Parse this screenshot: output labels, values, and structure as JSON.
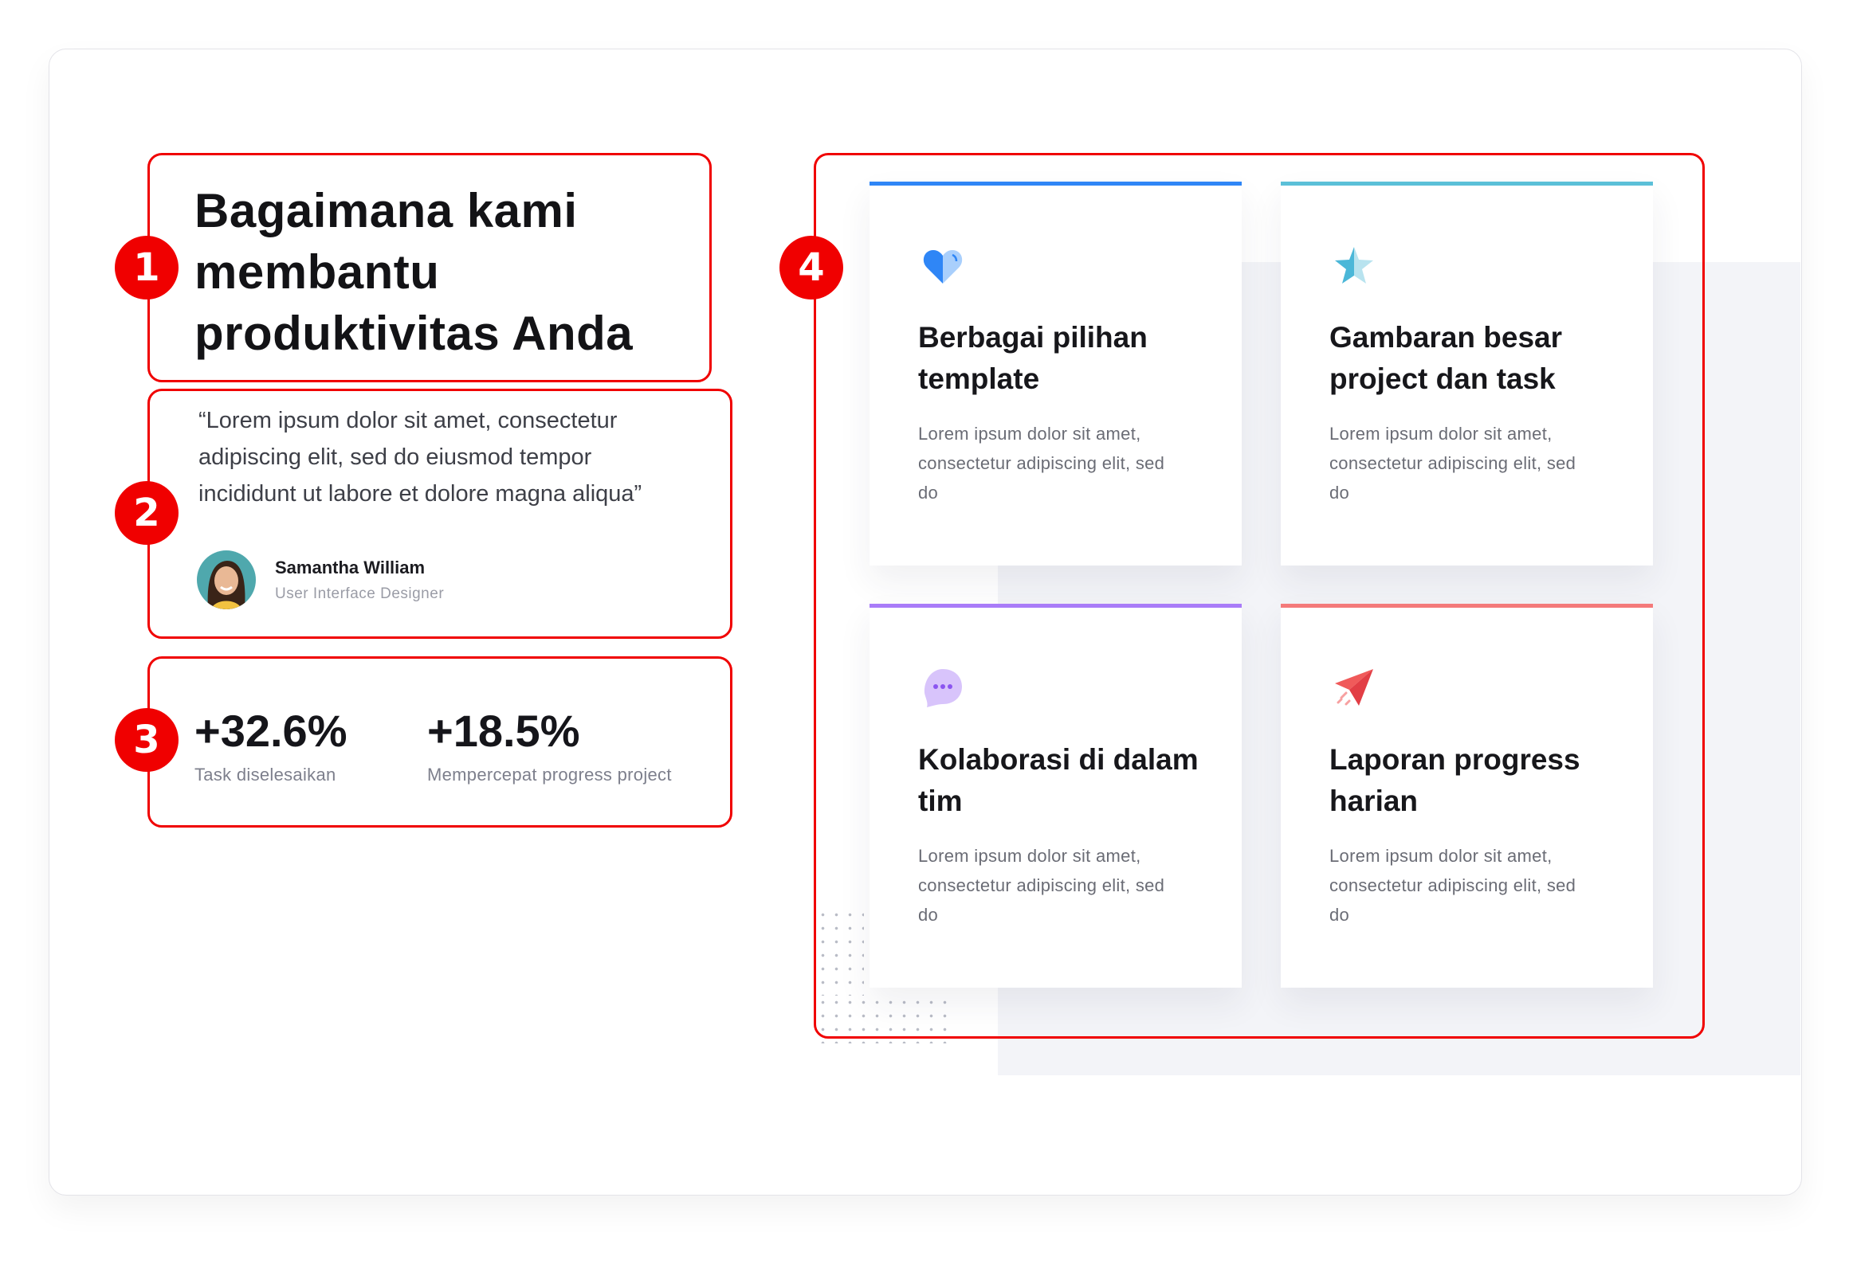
{
  "heading": {
    "title_lines": [
      "Bagaimana kami",
      "membantu",
      "produktivitas Anda"
    ]
  },
  "testimonial": {
    "quote_lines": [
      "“Lorem ipsum dolor sit amet, consectetur",
      "adipiscing elit, sed do eiusmod tempor",
      "incididunt ut labore et dolore magna aliqua”"
    ],
    "name": "Samantha William",
    "role": "User Interface Designer"
  },
  "stats": [
    {
      "value": "+32.6%",
      "label": "Task diselesaikan"
    },
    {
      "value": "+18.5%",
      "label": "Mempercepat progress project"
    }
  ],
  "badges": [
    "1",
    "2",
    "3",
    "4"
  ],
  "features": [
    {
      "icon": "heart-icon",
      "accent": "#2f86f6",
      "title": "Berbagai pilihan template",
      "body": "Lorem ipsum dolor sit amet, consectetur adipiscing elit, sed do"
    },
    {
      "icon": "star-icon",
      "accent": "#5bc0d8",
      "title": "Gambaran besar project dan task",
      "body": "Lorem ipsum dolor sit amet, consectetur adipiscing elit, sed do"
    },
    {
      "icon": "chat-bubble-icon",
      "accent": "#a97cf8",
      "title": "Kolaborasi di dalam tim",
      "body": "Lorem ipsum dolor sit amet, consectetur adipiscing elit, sed do"
    },
    {
      "icon": "paper-plane-icon",
      "accent": "#f47a7a",
      "title": "Laporan progress harian",
      "body": "Lorem ipsum dolor sit amet, consectetur adipiscing elit, sed do"
    }
  ],
  "colors": {
    "highlight": "#f00000",
    "panel": "#f3f4f8"
  }
}
